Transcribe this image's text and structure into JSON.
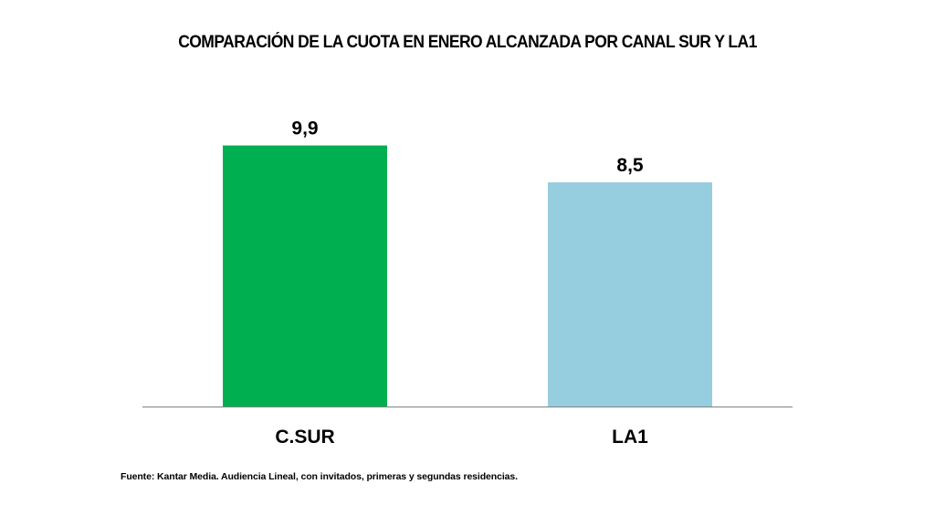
{
  "chart_data": {
    "type": "bar",
    "title": "COMPARACIÓN DE LA CUOTA EN ENERO ALCANZADA POR CANAL SUR Y LA1",
    "categories": [
      "C.SUR",
      "LA1"
    ],
    "values": [
      9.9,
      8.5
    ],
    "data_labels": [
      "9,9",
      "8,5"
    ],
    "colors": [
      "#00B050",
      "#96CDDF"
    ],
    "xlabel": "",
    "ylabel": "",
    "ylim": [
      0,
      10.3
    ],
    "grid": false,
    "legend": "none"
  },
  "footer": "Fuente: Kantar Media. Audiencia Lineal, con invitados, primeras y segundas residencias."
}
